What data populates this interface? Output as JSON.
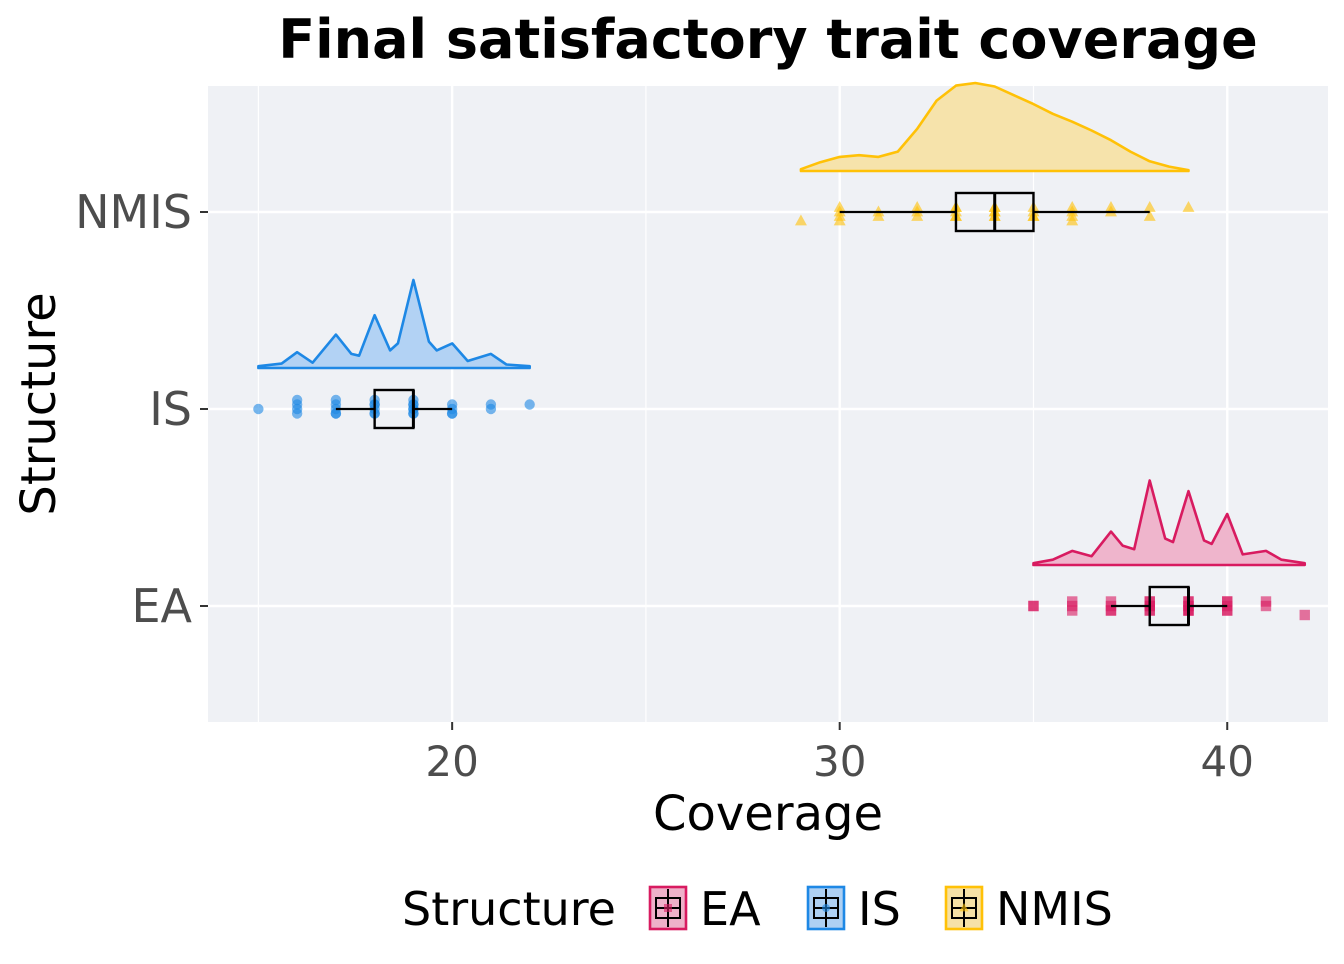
{
  "chart_data": {
    "type": "raincloud",
    "title": "Final satisfactory trait coverage",
    "xlabel": "Coverage",
    "ylabel": "Structure",
    "xlim": [
      13.7,
      42.6
    ],
    "xticks": [
      20,
      30,
      40
    ],
    "xtick_labels": [
      "20",
      "30",
      "40"
    ],
    "categories": [
      "EA",
      "IS",
      "NMIS"
    ],
    "grid": true,
    "legend": {
      "title": "Structure",
      "position": "bottom",
      "entries": [
        "EA",
        "IS",
        "NMIS"
      ]
    },
    "series": [
      {
        "name": "EA",
        "color": "#d81b60",
        "fill": "#eeb1c9",
        "marker": "square",
        "box": {
          "q1": 38,
          "median": 39,
          "q3": 39,
          "whisker_low": 37,
          "whisker_high": 40
        },
        "points": [
          [
            35,
            0
          ],
          [
            35,
            0
          ],
          [
            36,
            1
          ],
          [
            36,
            -1
          ],
          [
            36,
            0
          ],
          [
            37,
            1
          ],
          [
            37,
            -1
          ],
          [
            37,
            0
          ],
          [
            37,
            1
          ],
          [
            38,
            1
          ],
          [
            38,
            -1
          ],
          [
            38,
            0
          ],
          [
            38,
            1
          ],
          [
            38,
            -1
          ],
          [
            38,
            0
          ],
          [
            39,
            1
          ],
          [
            39,
            -1
          ],
          [
            39,
            0
          ],
          [
            39,
            1
          ],
          [
            39,
            -1
          ],
          [
            39,
            0
          ],
          [
            39,
            1
          ],
          [
            40,
            1
          ],
          [
            40,
            -1
          ],
          [
            40,
            0
          ],
          [
            40,
            1
          ],
          [
            40,
            -1
          ],
          [
            41,
            0
          ],
          [
            41,
            -1
          ],
          [
            42,
            2
          ]
        ],
        "density": [
          [
            35,
            0.02
          ],
          [
            35.5,
            0.06
          ],
          [
            36,
            0.16
          ],
          [
            36.5,
            0.1
          ],
          [
            37,
            0.38
          ],
          [
            37.3,
            0.22
          ],
          [
            37.6,
            0.18
          ],
          [
            38,
            0.96
          ],
          [
            38.4,
            0.3
          ],
          [
            38.6,
            0.26
          ],
          [
            39,
            0.84
          ],
          [
            39.4,
            0.28
          ],
          [
            39.6,
            0.24
          ],
          [
            40,
            0.58
          ],
          [
            40.4,
            0.12
          ],
          [
            41,
            0.16
          ],
          [
            41.4,
            0.06
          ],
          [
            42,
            0.02
          ]
        ]
      },
      {
        "name": "IS",
        "color": "#1e88e5",
        "fill": "#aed0f3",
        "marker": "circle",
        "box": {
          "q1": 18,
          "median": 19,
          "q3": 19,
          "whisker_low": 17,
          "whisker_high": 20
        },
        "points": [
          [
            15,
            0
          ],
          [
            16,
            1
          ],
          [
            16,
            -1
          ],
          [
            16,
            0
          ],
          [
            16,
            -2
          ],
          [
            17,
            1
          ],
          [
            17,
            -1
          ],
          [
            17,
            0
          ],
          [
            17,
            1
          ],
          [
            17,
            -2
          ],
          [
            18,
            1
          ],
          [
            18,
            -1
          ],
          [
            18,
            0
          ],
          [
            18,
            1
          ],
          [
            18,
            -1
          ],
          [
            18,
            -2
          ],
          [
            19,
            1
          ],
          [
            19,
            -1
          ],
          [
            19,
            0
          ],
          [
            19,
            1
          ],
          [
            19,
            -1
          ],
          [
            19,
            0
          ],
          [
            19,
            -2
          ],
          [
            20,
            1
          ],
          [
            20,
            -1
          ],
          [
            20,
            0
          ],
          [
            20,
            1
          ],
          [
            21,
            0
          ],
          [
            21,
            -1
          ],
          [
            22,
            -1
          ]
        ],
        "density": [
          [
            15,
            0.02
          ],
          [
            15.6,
            0.05
          ],
          [
            16,
            0.18
          ],
          [
            16.4,
            0.06
          ],
          [
            17,
            0.38
          ],
          [
            17.4,
            0.16
          ],
          [
            17.6,
            0.14
          ],
          [
            18,
            0.6
          ],
          [
            18.4,
            0.2
          ],
          [
            18.6,
            0.28
          ],
          [
            19,
            1.0
          ],
          [
            19.4,
            0.3
          ],
          [
            19.6,
            0.2
          ],
          [
            20,
            0.28
          ],
          [
            20.4,
            0.08
          ],
          [
            21,
            0.16
          ],
          [
            21.4,
            0.04
          ],
          [
            22,
            0.02
          ]
        ]
      },
      {
        "name": "NMIS",
        "color": "#ffc107",
        "fill": "#f6e1a6",
        "marker": "triangle",
        "box": {
          "q1": 33,
          "median": 34,
          "q3": 35,
          "whisker_low": 30,
          "whisker_high": 38
        },
        "points": [
          [
            29,
            2
          ],
          [
            30,
            1
          ],
          [
            30,
            -1
          ],
          [
            30,
            0
          ],
          [
            30,
            2
          ],
          [
            31,
            1
          ],
          [
            31,
            0
          ],
          [
            32,
            1
          ],
          [
            32,
            -1
          ],
          [
            32,
            0
          ],
          [
            33,
            1
          ],
          [
            33,
            -1
          ],
          [
            33,
            0
          ],
          [
            33,
            1
          ],
          [
            33,
            -1
          ],
          [
            34,
            1
          ],
          [
            34,
            -1
          ],
          [
            34,
            0
          ],
          [
            34,
            1
          ],
          [
            34,
            -1
          ],
          [
            34,
            0
          ],
          [
            35,
            1
          ],
          [
            35,
            -1
          ],
          [
            35,
            0
          ],
          [
            35,
            1
          ],
          [
            36,
            1
          ],
          [
            36,
            -1
          ],
          [
            36,
            0
          ],
          [
            36,
            2
          ],
          [
            37,
            0
          ],
          [
            37,
            -1
          ],
          [
            38,
            1
          ],
          [
            38,
            -1
          ],
          [
            39,
            -1
          ]
        ],
        "density": [
          [
            29,
            0.02
          ],
          [
            29.5,
            0.1
          ],
          [
            30,
            0.16
          ],
          [
            30.5,
            0.18
          ],
          [
            31,
            0.16
          ],
          [
            31.5,
            0.22
          ],
          [
            32,
            0.48
          ],
          [
            32.5,
            0.8
          ],
          [
            33,
            0.97
          ],
          [
            33.5,
            1.0
          ],
          [
            34,
            0.96
          ],
          [
            34.5,
            0.86
          ],
          [
            35,
            0.76
          ],
          [
            35.5,
            0.65
          ],
          [
            36,
            0.56
          ],
          [
            36.5,
            0.46
          ],
          [
            37,
            0.35
          ],
          [
            37.5,
            0.22
          ],
          [
            38,
            0.11
          ],
          [
            38.5,
            0.05
          ],
          [
            39,
            0.01
          ]
        ]
      }
    ]
  }
}
